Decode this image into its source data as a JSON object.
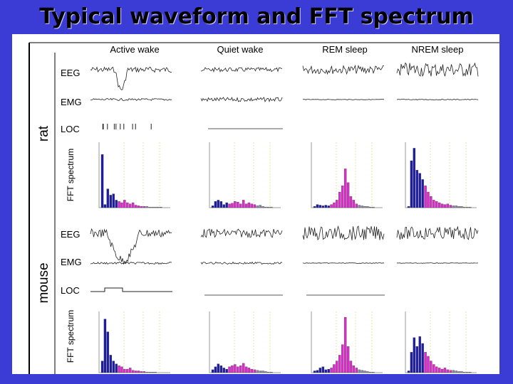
{
  "slide": {
    "title": "Typical waveform and FFT spectrum"
  },
  "figure": {
    "columns": [
      "Active wake",
      "Quiet wake",
      "REM sleep",
      "NREM sleep"
    ],
    "species": [
      {
        "name": "rat",
        "traces": [
          "EEG",
          "EMG",
          "LOC"
        ],
        "spectrum_label": "FFT spectrum"
      },
      {
        "name": "mouse",
        "traces": [
          "EEG",
          "EMG",
          "LOC"
        ],
        "spectrum_label": "FFT spectrum"
      }
    ],
    "colors": {
      "delta": "#1c1ca8",
      "theta": "#e02ad0",
      "other": "#8a8aa8",
      "trace": "#222222",
      "guide": "#e6e6a0"
    }
  },
  "chart_data": {
    "type": "bar",
    "note_units": "relative power (arbitrary)",
    "bins": 24,
    "series": [
      {
        "species": "rat",
        "state": "Active wake",
        "values": [
          0.85,
          0.05,
          0.3,
          0.2,
          0.22,
          0.12,
          0.1,
          0.08,
          0.12,
          0.08,
          0.06,
          0.08,
          0.04,
          0.03,
          0.02,
          0.02,
          0.02,
          0.01,
          0.01,
          0.01,
          0.01,
          0.01,
          0.0,
          0.0
        ]
      },
      {
        "species": "rat",
        "state": "Quiet wake",
        "values": [
          0.03,
          0.1,
          0.12,
          0.1,
          0.05,
          0.08,
          0.06,
          0.07,
          0.1,
          0.09,
          0.06,
          0.12,
          0.06,
          0.08,
          0.06,
          0.05,
          0.03,
          0.04,
          0.02,
          0.01,
          0.01,
          0.01,
          0.0,
          0.0
        ]
      },
      {
        "species": "rat",
        "state": "REM sleep",
        "values": [
          0.02,
          0.05,
          0.04,
          0.03,
          0.04,
          0.03,
          0.05,
          0.08,
          0.12,
          0.25,
          0.35,
          0.62,
          0.4,
          0.18,
          0.12,
          0.06,
          0.04,
          0.03,
          0.02,
          0.02,
          0.01,
          0.01,
          0.0,
          0.0
        ]
      },
      {
        "species": "rat",
        "state": "NREM sleep",
        "values": [
          0.02,
          0.75,
          0.95,
          0.6,
          0.55,
          0.45,
          0.35,
          0.25,
          0.18,
          0.12,
          0.1,
          0.08,
          0.06,
          0.05,
          0.06,
          0.04,
          0.03,
          0.03,
          0.02,
          0.02,
          0.01,
          0.01,
          0.01,
          0.0
        ]
      },
      {
        "species": "mouse",
        "state": "Active wake",
        "values": [
          0.2,
          0.92,
          0.7,
          0.3,
          0.2,
          0.15,
          0.12,
          0.1,
          0.06,
          0.06,
          0.08,
          0.04,
          0.03,
          0.03,
          0.02,
          0.02,
          0.01,
          0.01,
          0.01,
          0.01,
          0.0,
          0.0,
          0.0,
          0.0
        ]
      },
      {
        "species": "mouse",
        "state": "Quiet wake",
        "values": [
          0.05,
          0.1,
          0.15,
          0.12,
          0.08,
          0.06,
          0.1,
          0.12,
          0.14,
          0.1,
          0.12,
          0.16,
          0.1,
          0.08,
          0.06,
          0.05,
          0.04,
          0.03,
          0.03,
          0.02,
          0.01,
          0.01,
          0.0,
          0.0
        ]
      },
      {
        "species": "mouse",
        "state": "REM sleep",
        "values": [
          0.03,
          0.04,
          0.08,
          0.1,
          0.05,
          0.06,
          0.08,
          0.14,
          0.2,
          0.3,
          0.48,
          0.95,
          0.45,
          0.2,
          0.12,
          0.08,
          0.05,
          0.04,
          0.03,
          0.02,
          0.01,
          0.01,
          0.0,
          0.0
        ]
      },
      {
        "species": "mouse",
        "state": "NREM sleep",
        "values": [
          0.03,
          0.35,
          0.6,
          0.45,
          0.62,
          0.5,
          0.35,
          0.28,
          0.2,
          0.14,
          0.1,
          0.08,
          0.06,
          0.08,
          0.05,
          0.04,
          0.04,
          0.03,
          0.02,
          0.02,
          0.01,
          0.01,
          0.01,
          0.0
        ]
      }
    ]
  }
}
